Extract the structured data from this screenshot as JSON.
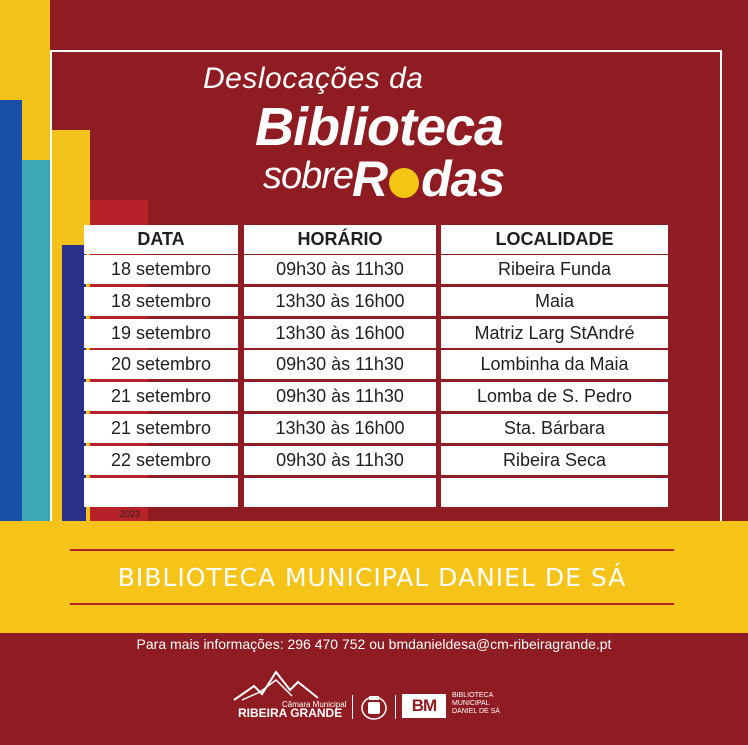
{
  "title": {
    "line1": "Deslocações da",
    "line2": "Biblioteca",
    "sobre": "sobre",
    "rodas_r": "R",
    "rodas_rest": "das"
  },
  "table": {
    "headers": [
      "DATA",
      "HORÁRIO",
      "LOCALIDADE"
    ],
    "rows": [
      [
        "18 setembro",
        "09h30 às 11h30",
        "Ribeira Funda"
      ],
      [
        "18 setembro",
        "13h30 às 16h00",
        "Maia"
      ],
      [
        "19 setembro",
        "13h30 às 16h00",
        "Matriz Larg StAndré"
      ],
      [
        "20 setembro",
        "09h30 às 11h30",
        "Lombinha da Maia"
      ],
      [
        "21 setembro",
        "09h30 às 11h30",
        "Lomba de S. Pedro"
      ],
      [
        "21 setembro",
        "13h30 às 16h00",
        "Sta. Bárbara"
      ],
      [
        "22 setembro",
        "09h30 às 11h30",
        "Ribeira Seca"
      ],
      [
        "",
        "",
        ""
      ]
    ]
  },
  "year": "2023",
  "banner": "BIBLIOTECA MUNICIPAL DANIEL DE SÁ",
  "info": "Para mais informações: 296 470 752 ou bmdanieldesa@cm-ribeiragrande.pt",
  "logos": {
    "cm_small": "Câmara Municipal",
    "cm_name": "RIBEIRA GRANDE",
    "bm_mark": "BM",
    "bm_label_1": "BIBLIOTECA",
    "bm_label_2": "MUNICIPAL",
    "bm_label_3": "DANIEL DE SÁ"
  },
  "colors": {
    "background": "#8e1c22",
    "accent_yellow": "#f6c419",
    "text_white": "#ffffff"
  }
}
